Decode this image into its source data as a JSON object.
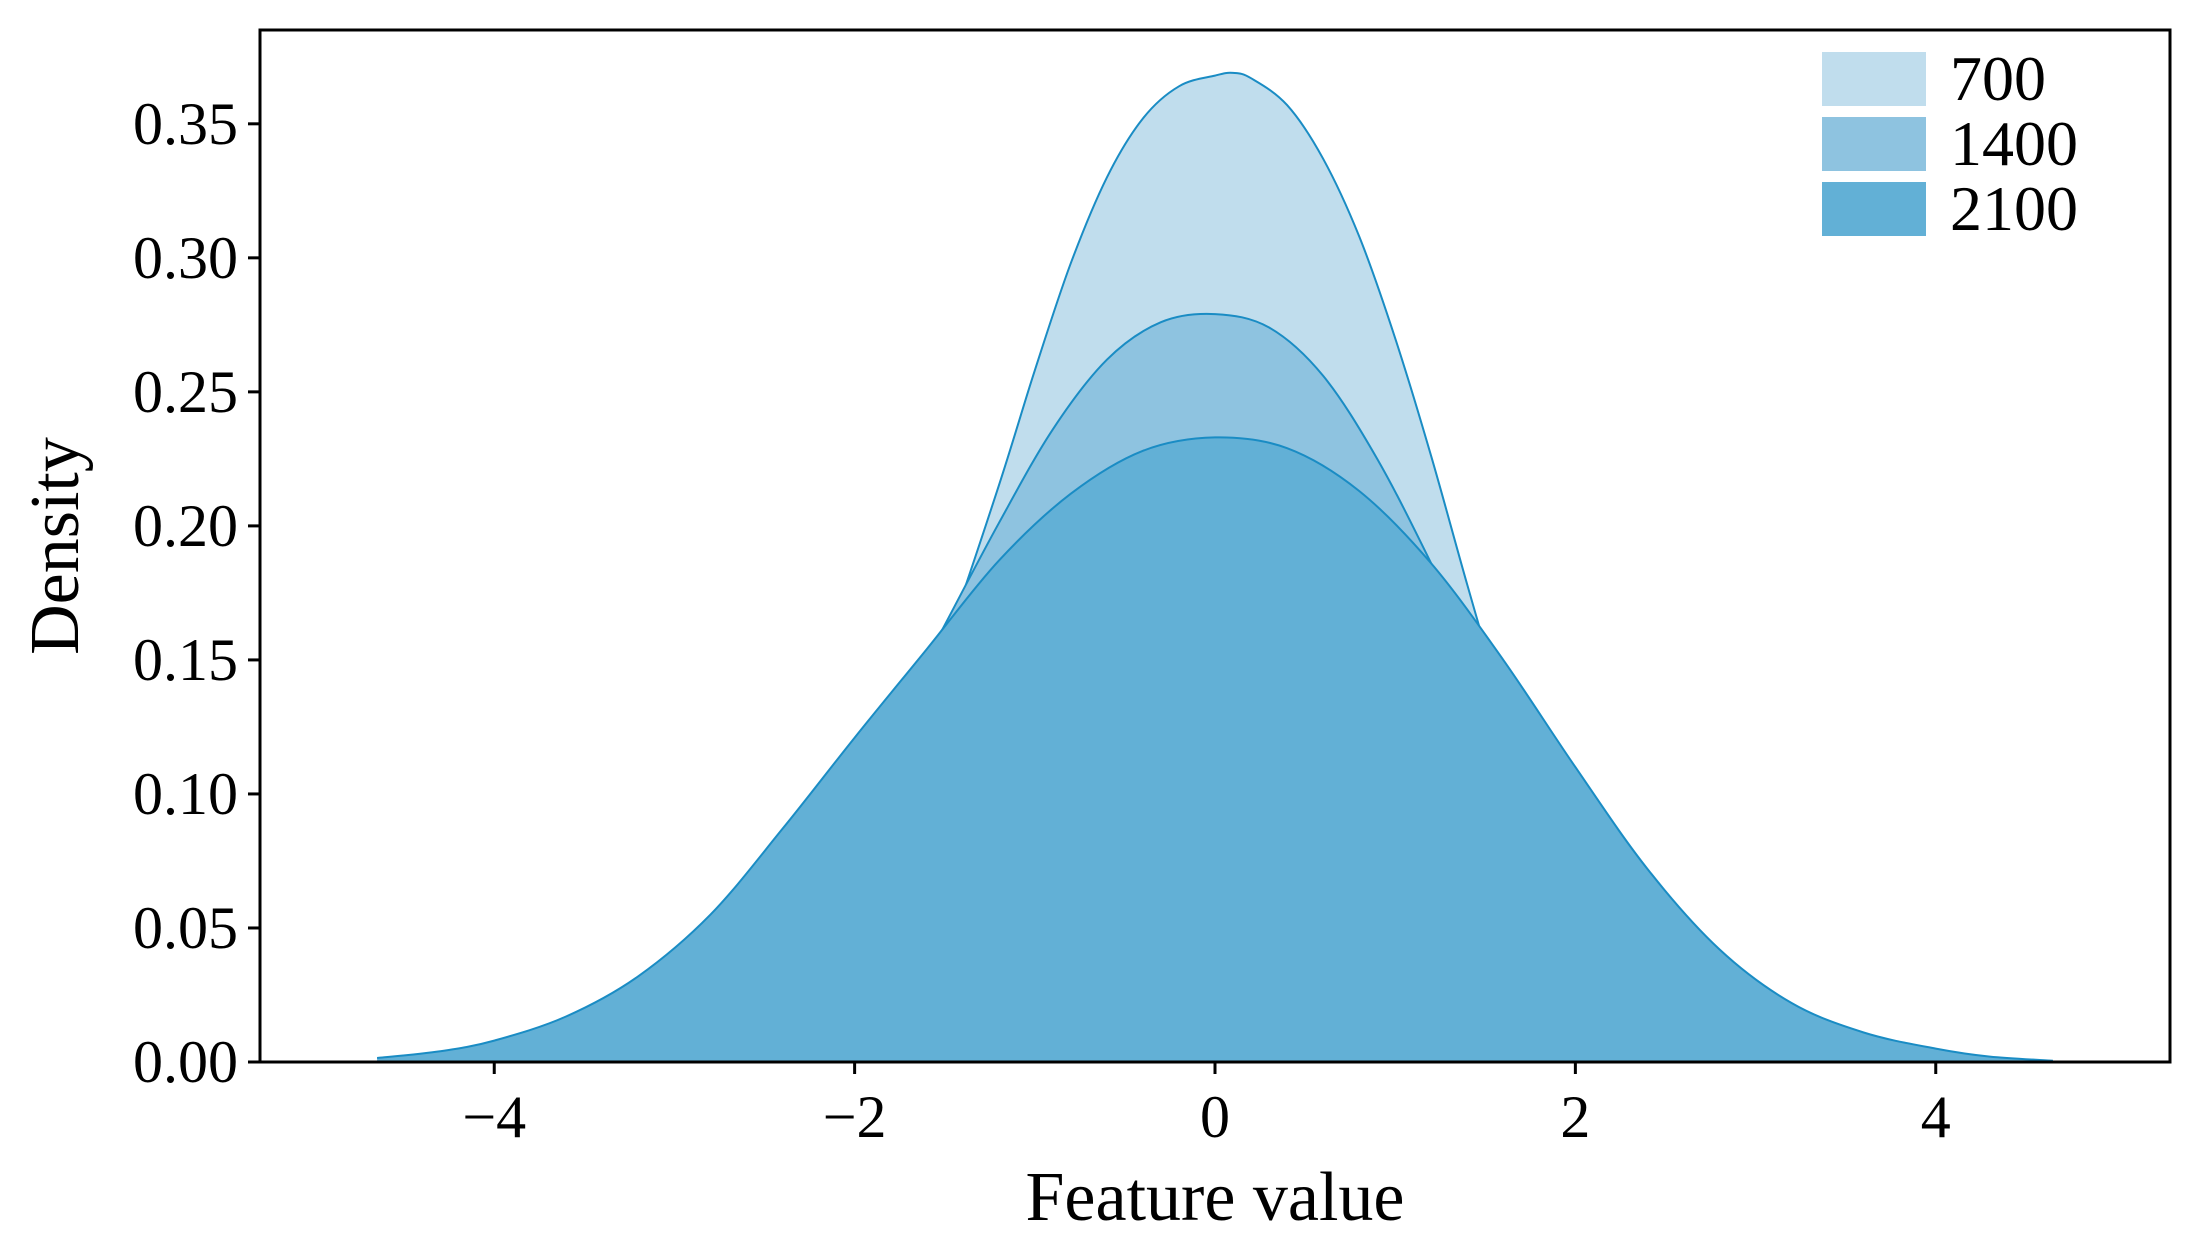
{
  "chart_data": {
    "type": "area",
    "title": "",
    "xlabel": "Feature value",
    "ylabel": "Density",
    "xlim": [
      -5.3,
      5.3
    ],
    "ylim": [
      0,
      0.385
    ],
    "grid": false,
    "legend_position": "top-right",
    "x_ticks": [
      -4,
      -2,
      0,
      2,
      4
    ],
    "x_tick_labels": [
      "−4",
      "−2",
      "0",
      "2",
      "4"
    ],
    "y_ticks": [
      0.0,
      0.05,
      0.1,
      0.15,
      0.2,
      0.25,
      0.3,
      0.35
    ],
    "y_tick_labels": [
      "0.00",
      "0.05",
      "0.10",
      "0.15",
      "0.20",
      "0.25",
      "0.30",
      "0.35"
    ],
    "line_color": "#1a8cc4",
    "series": [
      {
        "name": "700",
        "color": "#c0dded",
        "x": [
          -3.85,
          -3.6,
          -3.4,
          -3.2,
          -3.0,
          -2.8,
          -2.7,
          -2.5,
          -2.3,
          -2.1,
          -1.8,
          -1.5,
          -1.2,
          -1.0,
          -0.8,
          -0.6,
          -0.4,
          -0.2,
          0.0,
          0.1,
          0.2,
          0.4,
          0.6,
          0.8,
          1.0,
          1.2,
          1.4,
          1.6,
          1.8,
          2.0,
          2.2,
          2.4,
          2.6,
          2.8,
          3.1,
          3.4,
          3.85
        ],
        "y": [
          0.002,
          0.012,
          0.018,
          0.02,
          0.016,
          0.012,
          0.01,
          0.015,
          0.03,
          0.055,
          0.1,
          0.155,
          0.215,
          0.258,
          0.298,
          0.33,
          0.352,
          0.364,
          0.368,
          0.369,
          0.367,
          0.357,
          0.337,
          0.308,
          0.27,
          0.226,
          0.178,
          0.132,
          0.09,
          0.057,
          0.033,
          0.018,
          0.009,
          0.004,
          0.0015,
          0.0007,
          0.0002
        ]
      },
      {
        "name": "1400",
        "color": "#8ec3e0",
        "x": [
          -3.85,
          -3.5,
          -3.2,
          -3.0,
          -2.7,
          -2.4,
          -2.1,
          -1.8,
          -1.5,
          -1.2,
          -0.9,
          -0.6,
          -0.3,
          0.0,
          0.3,
          0.6,
          0.9,
          1.2,
          1.5,
          1.8,
          2.1,
          2.4,
          2.7,
          3.0,
          3.4,
          3.85
        ],
        "y": [
          0.0015,
          0.006,
          0.013,
          0.019,
          0.034,
          0.057,
          0.088,
          0.125,
          0.163,
          0.201,
          0.236,
          0.262,
          0.276,
          0.279,
          0.274,
          0.256,
          0.225,
          0.186,
          0.143,
          0.101,
          0.065,
          0.037,
          0.019,
          0.009,
          0.003,
          0.0007
        ]
      },
      {
        "name": "2100",
        "color": "#62b0d6",
        "x": [
          -4.65,
          -4.3,
          -4.0,
          -3.6,
          -3.2,
          -2.8,
          -2.4,
          -2.0,
          -1.6,
          -1.2,
          -0.8,
          -0.4,
          0.0,
          0.4,
          0.8,
          1.2,
          1.6,
          2.0,
          2.4,
          2.8,
          3.2,
          3.6,
          4.0,
          4.3,
          4.65
        ],
        "y": [
          0.0015,
          0.004,
          0.008,
          0.017,
          0.032,
          0.055,
          0.087,
          0.121,
          0.154,
          0.187,
          0.212,
          0.228,
          0.233,
          0.229,
          0.213,
          0.186,
          0.15,
          0.11,
          0.072,
          0.042,
          0.022,
          0.011,
          0.005,
          0.002,
          0.0005
        ]
      }
    ]
  }
}
